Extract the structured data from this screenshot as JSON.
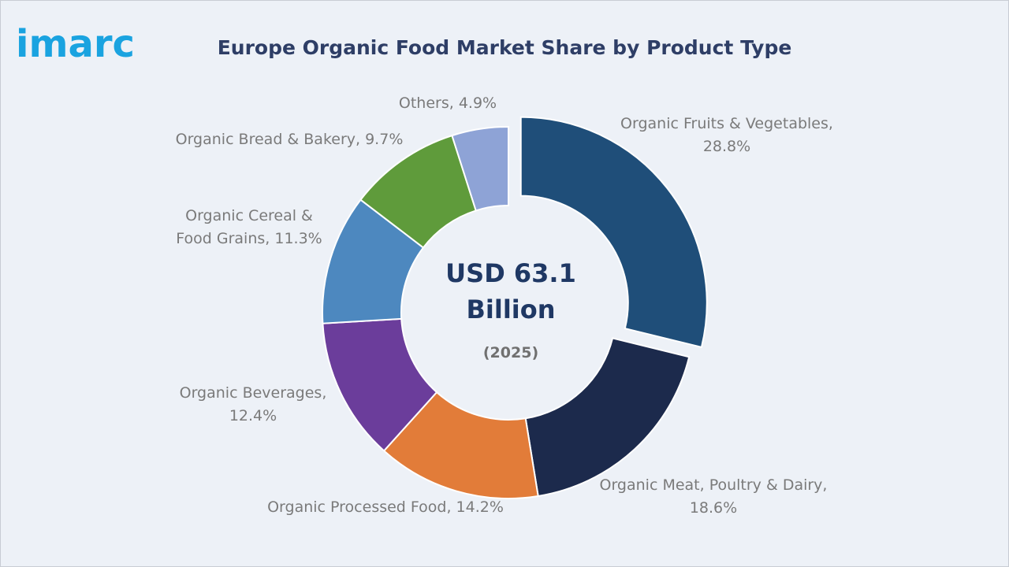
{
  "logo": "imarc",
  "chart_data": {
    "type": "donut",
    "title": "Europe Organic Food Market Share by Product Type",
    "values": [
      28.8,
      18.6,
      14.2,
      12.4,
      11.3,
      9.7,
      4.9
    ],
    "value_labels": [
      "Organic Fruits & Vegetables, 28.8%",
      "Organic Meat, Poultry & Dairy, 18.6%",
      "Organic Processed Food, 14.2%",
      "Organic Beverages, 12.4%",
      "Organic Cereal & Food Grains, 11.3%",
      "Organic Bread & Bakery, 9.7%",
      "Others, 4.9%"
    ],
    "colors": [
      "#1f4e79",
      "#1c2a4c",
      "#e27c39",
      "#6b3d9b",
      "#4d88bf",
      "#5f9b3b",
      "#8ea3d6"
    ],
    "center_lines": [
      "USD 63.1",
      "Billion"
    ],
    "center_note": "(2025)"
  }
}
